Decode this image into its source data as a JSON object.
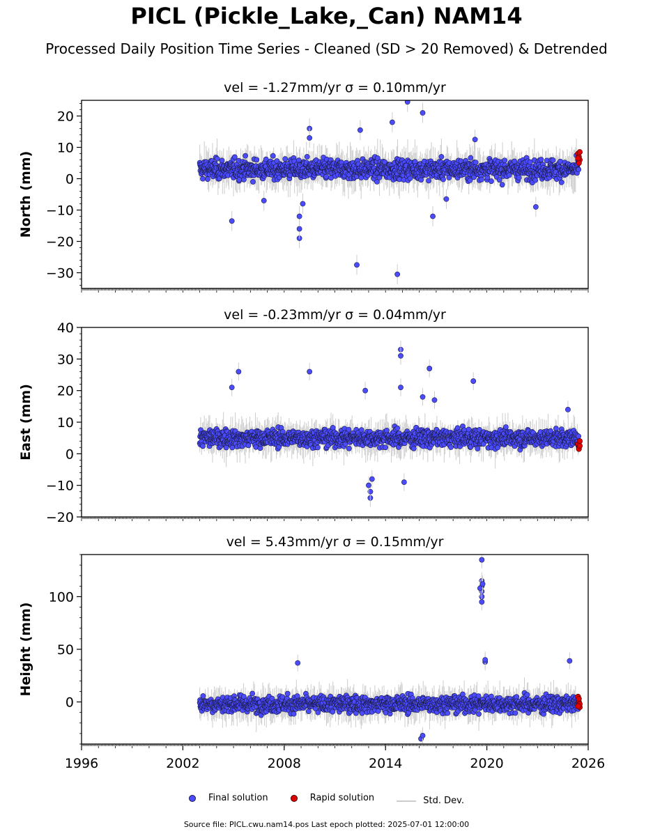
{
  "title": "PICL (Pickle_Lake,_Can) NAM14",
  "subtitle": "Processed Daily Position Time Series - Cleaned (SD > 20 Removed) & Detrended",
  "legend": {
    "final": "Final solution",
    "rapid": "Rapid solution",
    "stddev": "Std. Dev."
  },
  "footer": "Source file: PICL.cwu.nam14.pos  Last epoch plotted: 2025-07-01 12:00:00",
  "colors": {
    "final": "#4b4bff",
    "rapid": "#e00000",
    "stddev": "#cccccc",
    "edge": "#1a1a40"
  },
  "chart_data": [
    {
      "type": "scatter",
      "name": "north",
      "title": "vel = -1.27mm/yr   σ = 0.10mm/yr",
      "ylabel": "North (mm)",
      "xlim": [
        1996,
        2026
      ],
      "ylim": [
        -35,
        25
      ],
      "yticks": [
        -30,
        -20,
        -10,
        0,
        10,
        20
      ],
      "x_tick_labels": [],
      "data_span": [
        2003.0,
        2025.5
      ],
      "typical": {
        "center": 3,
        "spread": 4
      },
      "outliers": [
        [
          2004.9,
          -13.5
        ],
        [
          2006.8,
          -7
        ],
        [
          2008.9,
          -19
        ],
        [
          2008.9,
          -16
        ],
        [
          2008.9,
          -12
        ],
        [
          2009.1,
          -8
        ],
        [
          2009.5,
          16
        ],
        [
          2009.5,
          13
        ],
        [
          2012.3,
          -27.5
        ],
        [
          2014.7,
          -30.5
        ],
        [
          2014.4,
          18
        ],
        [
          2015.3,
          24.5
        ],
        [
          2016.2,
          21
        ],
        [
          2012.5,
          15.5
        ],
        [
          2019.3,
          12.5
        ],
        [
          2022.9,
          -9
        ],
        [
          2017.6,
          -6.5
        ],
        [
          2016.8,
          -12
        ]
      ],
      "rapid": [
        [
          2025.4,
          8
        ],
        [
          2025.45,
          7
        ],
        [
          2025.5,
          6
        ],
        [
          2025.45,
          5
        ],
        [
          2025.5,
          8.5
        ],
        [
          2025.4,
          6.5
        ]
      ]
    },
    {
      "type": "scatter",
      "name": "east",
      "title": "vel = -0.23mm/yr   σ = 0.04mm/yr",
      "ylabel": "East (mm)",
      "xlim": [
        1996,
        2026
      ],
      "ylim": [
        -20,
        40
      ],
      "yticks": [
        -20,
        -10,
        0,
        10,
        20,
        30,
        40
      ],
      "x_tick_labels": [],
      "data_span": [
        2003.0,
        2025.5
      ],
      "typical": {
        "center": 5,
        "spread": 3.5
      },
      "outliers": [
        [
          2005.3,
          26
        ],
        [
          2004.9,
          21
        ],
        [
          2009.5,
          26
        ],
        [
          2012.8,
          20
        ],
        [
          2013.1,
          -14
        ],
        [
          2013.1,
          -12
        ],
        [
          2013.0,
          -10
        ],
        [
          2013.2,
          -8
        ],
        [
          2014.9,
          33
        ],
        [
          2014.9,
          31
        ],
        [
          2014.9,
          21
        ],
        [
          2015.1,
          -9
        ],
        [
          2016.6,
          27
        ],
        [
          2016.2,
          18
        ],
        [
          2019.2,
          23
        ],
        [
          2016.9,
          17
        ],
        [
          2024.8,
          14
        ]
      ],
      "rapid": [
        [
          2025.4,
          3
        ],
        [
          2025.45,
          2
        ],
        [
          2025.5,
          4
        ],
        [
          2025.45,
          1.5
        ],
        [
          2025.5,
          2.5
        ]
      ]
    },
    {
      "type": "scatter",
      "name": "height",
      "title": "vel = 5.43mm/yr   σ = 0.15mm/yr",
      "ylabel": "Height (mm)",
      "xlim": [
        1996,
        2026
      ],
      "ylim": [
        -40,
        140
      ],
      "yticks": [
        0,
        50,
        100
      ],
      "x_tick_labels": [
        "1996",
        "2002",
        "2008",
        "2014",
        "2020",
        "2026"
      ],
      "data_span": [
        2003.0,
        2025.5
      ],
      "typical": {
        "center": -2,
        "spread": 10
      },
      "outliers": [
        [
          2019.7,
          135
        ],
        [
          2019.7,
          115
        ],
        [
          2019.7,
          110
        ],
        [
          2019.7,
          105
        ],
        [
          2019.7,
          100
        ],
        [
          2019.7,
          95
        ],
        [
          2019.6,
          108
        ],
        [
          2019.75,
          112
        ],
        [
          2008.8,
          37
        ],
        [
          2019.9,
          38
        ],
        [
          2019.9,
          40
        ],
        [
          2016.1,
          -35
        ],
        [
          2016.2,
          -32
        ],
        [
          2024.9,
          39
        ]
      ],
      "rapid": [
        [
          2025.4,
          5
        ],
        [
          2025.45,
          0
        ],
        [
          2025.5,
          -5
        ],
        [
          2025.45,
          3
        ],
        [
          2025.5,
          -2
        ],
        [
          2025.4,
          -4
        ]
      ]
    }
  ]
}
